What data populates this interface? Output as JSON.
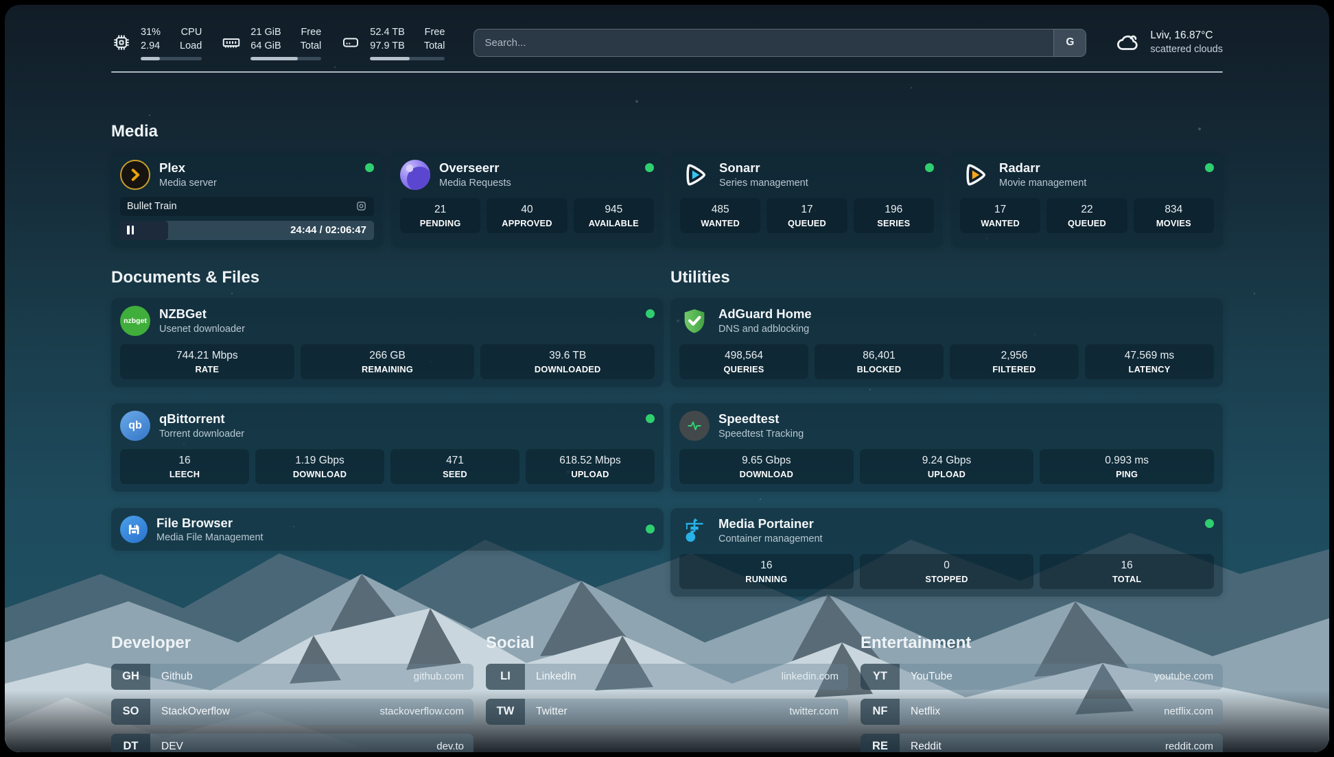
{
  "topbar": {
    "resources": [
      {
        "value1": "31%",
        "value2": "2.94",
        "label1": "CPU",
        "label2": "Load",
        "progress": 31
      },
      {
        "value1": "21 GiB",
        "value2": "64 GiB",
        "label1": "Free",
        "label2": "Total",
        "progress": 67
      },
      {
        "value1": "52.4 TB",
        "value2": "97.9 TB",
        "label1": "Free",
        "label2": "Total",
        "progress": 53
      }
    ],
    "search": {
      "placeholder": "Search...",
      "button_label": "G"
    },
    "weather": {
      "location_temp": "Lviv, 16.87°C",
      "condition": "scattered clouds"
    }
  },
  "sections": {
    "media": {
      "title": "Media",
      "plex": {
        "title": "Plex",
        "subtitle": "Media server",
        "now_playing": "Bullet Train",
        "time_display": "24:44 / 02:06:47",
        "progress_pct": 19
      },
      "overseerr": {
        "title": "Overseerr",
        "subtitle": "Media Requests",
        "stats": [
          {
            "value": "21",
            "label": "PENDING"
          },
          {
            "value": "40",
            "label": "APPROVED"
          },
          {
            "value": "945",
            "label": "AVAILABLE"
          }
        ]
      },
      "sonarr": {
        "title": "Sonarr",
        "subtitle": "Series management",
        "stats": [
          {
            "value": "485",
            "label": "WANTED"
          },
          {
            "value": "17",
            "label": "QUEUED"
          },
          {
            "value": "196",
            "label": "SERIES"
          }
        ]
      },
      "radarr": {
        "title": "Radarr",
        "subtitle": "Movie management",
        "stats": [
          {
            "value": "17",
            "label": "WANTED"
          },
          {
            "value": "22",
            "label": "QUEUED"
          },
          {
            "value": "834",
            "label": "MOVIES"
          }
        ]
      }
    },
    "documents": {
      "title": "Documents & Files",
      "nzbget": {
        "title": "NZBGet",
        "subtitle": "Usenet downloader",
        "logo_text": "nzbget",
        "stats": [
          {
            "value": "744.21 Mbps",
            "label": "RATE"
          },
          {
            "value": "266 GB",
            "label": "REMAINING"
          },
          {
            "value": "39.6 TB",
            "label": "DOWNLOADED"
          }
        ]
      },
      "qbittorrent": {
        "title": "qBittorrent",
        "subtitle": "Torrent downloader",
        "logo_text": "qb",
        "stats": [
          {
            "value": "16",
            "label": "LEECH"
          },
          {
            "value": "1.19 Gbps",
            "label": "DOWNLOAD"
          },
          {
            "value": "471",
            "label": "SEED"
          },
          {
            "value": "618.52 Mbps",
            "label": "UPLOAD"
          }
        ]
      },
      "filebrowser": {
        "title": "File Browser",
        "subtitle": "Media File Management"
      }
    },
    "utilities": {
      "title": "Utilities",
      "adguard": {
        "title": "AdGuard Home",
        "subtitle": "DNS and adblocking",
        "stats": [
          {
            "value": "498,564",
            "label": "QUERIES"
          },
          {
            "value": "86,401",
            "label": "BLOCKED"
          },
          {
            "value": "2,956",
            "label": "FILTERED"
          },
          {
            "value": "47.569 ms",
            "label": "LATENCY"
          }
        ]
      },
      "speedtest": {
        "title": "Speedtest",
        "subtitle": "Speedtest Tracking",
        "stats": [
          {
            "value": "9.65 Gbps",
            "label": "DOWNLOAD"
          },
          {
            "value": "9.24 Gbps",
            "label": "UPLOAD"
          },
          {
            "value": "0.993 ms",
            "label": "PING"
          }
        ]
      },
      "portainer": {
        "title": "Media Portainer",
        "subtitle": "Container management",
        "stats": [
          {
            "value": "16",
            "label": "RUNNING"
          },
          {
            "value": "0",
            "label": "STOPPED"
          },
          {
            "value": "16",
            "label": "TOTAL"
          }
        ]
      }
    },
    "developer": {
      "title": "Developer",
      "bookmarks": [
        {
          "abbr": "GH",
          "name": "Github",
          "domain": "github.com"
        },
        {
          "abbr": "SO",
          "name": "StackOverflow",
          "domain": "stackoverflow.com"
        },
        {
          "abbr": "DT",
          "name": "DEV",
          "domain": "dev.to"
        }
      ]
    },
    "social": {
      "title": "Social",
      "bookmarks": [
        {
          "abbr": "LI",
          "name": "LinkedIn",
          "domain": "linkedin.com"
        },
        {
          "abbr": "TW",
          "name": "Twitter",
          "domain": "twitter.com"
        }
      ]
    },
    "entertainment": {
      "title": "Entertainment",
      "bookmarks": [
        {
          "abbr": "YT",
          "name": "YouTube",
          "domain": "youtube.com"
        },
        {
          "abbr": "NF",
          "name": "Netflix",
          "domain": "netflix.com"
        },
        {
          "abbr": "RE",
          "name": "Reddit",
          "domain": "reddit.com"
        }
      ]
    }
  },
  "colors": {
    "status_online": "#2fcf6f"
  }
}
